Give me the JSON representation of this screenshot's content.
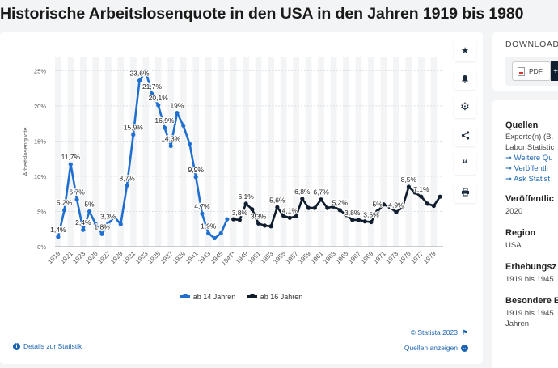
{
  "page": {
    "title": "Historische Arbeitslosenquote in den USA in den Jahren 1919 bis 1980"
  },
  "chart_data": {
    "type": "line",
    "title": "Historische Arbeitslosenquote in den USA in den Jahren 1919 bis 1980",
    "xlabel": "",
    "ylabel": "Arbeitslosenquote",
    "ylim": [
      0,
      27
    ],
    "yticks": [
      0,
      5,
      10,
      15,
      20,
      25
    ],
    "ytick_labels": [
      "0%",
      "5%",
      "10%",
      "15%",
      "20%",
      "25%"
    ],
    "xlim": [
      1918.5,
      1980.5
    ],
    "xtick_labels": [
      {
        "year": 1919,
        "label": "1919"
      },
      {
        "year": 1921,
        "label": "1921"
      },
      {
        "year": 1923,
        "label": "1923"
      },
      {
        "year": 1925,
        "label": "1925"
      },
      {
        "year": 1927,
        "label": "1927"
      },
      {
        "year": 1929,
        "label": "1929"
      },
      {
        "year": 1931,
        "label": "1931"
      },
      {
        "year": 1933,
        "label": "1933"
      },
      {
        "year": 1935,
        "label": "1935"
      },
      {
        "year": 1937,
        "label": "1937"
      },
      {
        "year": 1939,
        "label": "1939"
      },
      {
        "year": 1941,
        "label": "1941"
      },
      {
        "year": 1943,
        "label": "1943"
      },
      {
        "year": 1945,
        "label": "1945"
      },
      {
        "year": 1947,
        "label": "1947*"
      },
      {
        "year": 1949,
        "label": "1949"
      },
      {
        "year": 1951,
        "label": "1951"
      },
      {
        "year": 1953,
        "label": "1953"
      },
      {
        "year": 1955,
        "label": "1955"
      },
      {
        "year": 1957,
        "label": "1957"
      },
      {
        "year": 1959,
        "label": "1959"
      },
      {
        "year": 1961,
        "label": "1961"
      },
      {
        "year": 1963,
        "label": "1963"
      },
      {
        "year": 1965,
        "label": "1965"
      },
      {
        "year": 1967,
        "label": "1967"
      },
      {
        "year": 1969,
        "label": "1969"
      },
      {
        "year": 1971,
        "label": "1971"
      },
      {
        "year": 1973,
        "label": "1973"
      },
      {
        "year": 1975,
        "label": "1975"
      },
      {
        "year": 1977,
        "label": "1977"
      },
      {
        "year": 1979,
        "label": "1979"
      }
    ],
    "legend_position": "bottom",
    "series": [
      {
        "name": "ab 14 Jahren",
        "color": "#1f6fd1",
        "x": [
          1919,
          1920,
          1921,
          1922,
          1923,
          1924,
          1925,
          1926,
          1927,
          1928,
          1929,
          1930,
          1931,
          1932,
          1933,
          1934,
          1935,
          1936,
          1937,
          1938,
          1939,
          1940,
          1941,
          1942,
          1943,
          1944,
          1945,
          1946
        ],
        "values": [
          1.4,
          5.2,
          11.7,
          6.7,
          2.4,
          5.0,
          3.2,
          1.8,
          3.3,
          4.2,
          3.2,
          8.7,
          15.9,
          23.6,
          24.9,
          21.7,
          20.1,
          16.9,
          14.3,
          19.0,
          17.2,
          14.6,
          9.9,
          4.7,
          1.9,
          1.2,
          1.9,
          3.9
        ]
      },
      {
        "name": "ab 16 Jahren",
        "color": "#0f1d2e",
        "x": [
          1947,
          1948,
          1949,
          1950,
          1951,
          1952,
          1953,
          1954,
          1955,
          1956,
          1957,
          1958,
          1959,
          1960,
          1961,
          1962,
          1963,
          1964,
          1965,
          1966,
          1967,
          1968,
          1969,
          1970,
          1971,
          1972,
          1973,
          1974,
          1975,
          1976,
          1977,
          1978,
          1979,
          1980
        ],
        "values": [
          3.9,
          3.8,
          6.1,
          5.3,
          3.3,
          3.0,
          2.9,
          5.6,
          4.4,
          4.1,
          4.3,
          6.8,
          5.5,
          5.5,
          6.7,
          5.5,
          5.7,
          5.2,
          4.5,
          3.8,
          3.8,
          3.6,
          3.5,
          5.0,
          6.0,
          5.6,
          4.9,
          5.6,
          8.5,
          7.7,
          7.1,
          6.1,
          5.8,
          7.1
        ]
      }
    ],
    "data_labels": [
      {
        "series": 0,
        "x": 1919,
        "text": "1,4%"
      },
      {
        "series": 0,
        "x": 1920,
        "text": "5,2%"
      },
      {
        "series": 0,
        "x": 1921,
        "text": "11,7%"
      },
      {
        "series": 0,
        "x": 1922,
        "text": "6,7%"
      },
      {
        "series": 0,
        "x": 1923,
        "text": "2,4%"
      },
      {
        "series": 0,
        "x": 1924,
        "text": "5%"
      },
      {
        "series": 0,
        "x": 1926,
        "text": "1,8%"
      },
      {
        "series": 0,
        "x": 1927,
        "text": "3,3%"
      },
      {
        "series": 0,
        "x": 1930,
        "text": "8,7%"
      },
      {
        "series": 0,
        "x": 1931,
        "text": "15,9%"
      },
      {
        "series": 0,
        "x": 1932,
        "text": "23,6%"
      },
      {
        "series": 0,
        "x": 1934,
        "text": "21,7%"
      },
      {
        "series": 0,
        "x": 1935,
        "text": "20,1%"
      },
      {
        "series": 0,
        "x": 1936,
        "text": "16,9%"
      },
      {
        "series": 0,
        "x": 1937,
        "text": "14,3%"
      },
      {
        "series": 0,
        "x": 1938,
        "text": "19%"
      },
      {
        "series": 0,
        "x": 1941,
        "text": "9,9%"
      },
      {
        "series": 0,
        "x": 1942,
        "text": "4,7%"
      },
      {
        "series": 0,
        "x": 1943,
        "text": "1,9%"
      },
      {
        "series": 1,
        "x": 1948,
        "text": "3,8%"
      },
      {
        "series": 1,
        "x": 1949,
        "text": "6,1%"
      },
      {
        "series": 1,
        "x": 1951,
        "text": "3,3%"
      },
      {
        "series": 1,
        "x": 1954,
        "text": "5,6%"
      },
      {
        "series": 1,
        "x": 1956,
        "text": "4,1%"
      },
      {
        "series": 1,
        "x": 1958,
        "text": "6,8%"
      },
      {
        "series": 1,
        "x": 1961,
        "text": "6,7%"
      },
      {
        "series": 1,
        "x": 1964,
        "text": "5,2%"
      },
      {
        "series": 1,
        "x": 1966,
        "text": "3,8%"
      },
      {
        "series": 1,
        "x": 1969,
        "text": "3,5%"
      },
      {
        "series": 1,
        "x": 1970,
        "text": "5%"
      },
      {
        "series": 1,
        "x": 1973,
        "text": "4,9%"
      },
      {
        "series": 1,
        "x": 1975,
        "text": "8,5%"
      },
      {
        "series": 1,
        "x": 1977,
        "text": "7,1%"
      }
    ]
  },
  "legend": {
    "items": [
      "ab 14 Jahren",
      "ab 16 Jahren"
    ]
  },
  "footer": {
    "copyright": "© Statista 2023",
    "details_link": "Details zur Statistik",
    "sources_link": "Quellen anzeigen"
  },
  "tools": [
    "star-icon",
    "bell-icon",
    "gear-icon",
    "share-icon",
    "quote-icon",
    "print-icon"
  ],
  "download": {
    "title": "DOWNLOAD",
    "pdf_label": "PDF",
    "plus": "+"
  },
  "sidebar": {
    "sources_head": "Quellen",
    "sources_text1": "Experte(n) (B.",
    "sources_text2": "Labor Statistic",
    "links": [
      "Weitere Qu",
      "Veröffentli",
      "Ask Statist"
    ],
    "published_head": "Veröffentlic",
    "published_value": "2020",
    "region_head": "Region",
    "region_value": "USA",
    "survey_head": "Erhebungsz",
    "survey_value": "1919 bis 1945",
    "special_head": "Besondere E",
    "special_value1": "1919 bis 1945",
    "special_value2": "Jahren"
  }
}
